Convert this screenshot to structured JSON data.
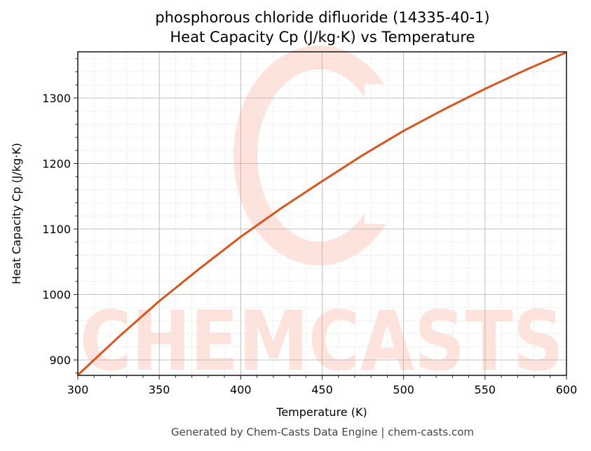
{
  "chart_data": {
    "type": "line",
    "title": "phosphorous chloride difluoride (14335-40-1)",
    "subtitle": "Heat Capacity Cp (J/kg·K) vs Temperature",
    "xlabel": "Temperature (K)",
    "ylabel": "Heat Capacity Cp (J/kg·K)",
    "xlim": [
      300,
      600
    ],
    "ylim": [
      876.5,
      1370.6
    ],
    "x_ticks": [
      300,
      350,
      400,
      450,
      500,
      550,
      600
    ],
    "y_ticks": [
      900,
      1000,
      1100,
      1200,
      1300
    ],
    "grid": true,
    "legend": null,
    "series": [
      {
        "name": "Heat Capacity Cp",
        "color": "#d9541e",
        "x": [
          300,
          325,
          350,
          375,
          400,
          425,
          450,
          475,
          500,
          525,
          550,
          575,
          600
        ],
        "y": [
          877,
          935,
          990,
          1040,
          1088,
          1132,
          1173,
          1213,
          1250,
          1283,
          1314,
          1343,
          1370
        ]
      }
    ]
  },
  "footer": "Generated by Chem-Casts Data Engine | chem-casts.com",
  "watermark": "CHEMCASTS"
}
